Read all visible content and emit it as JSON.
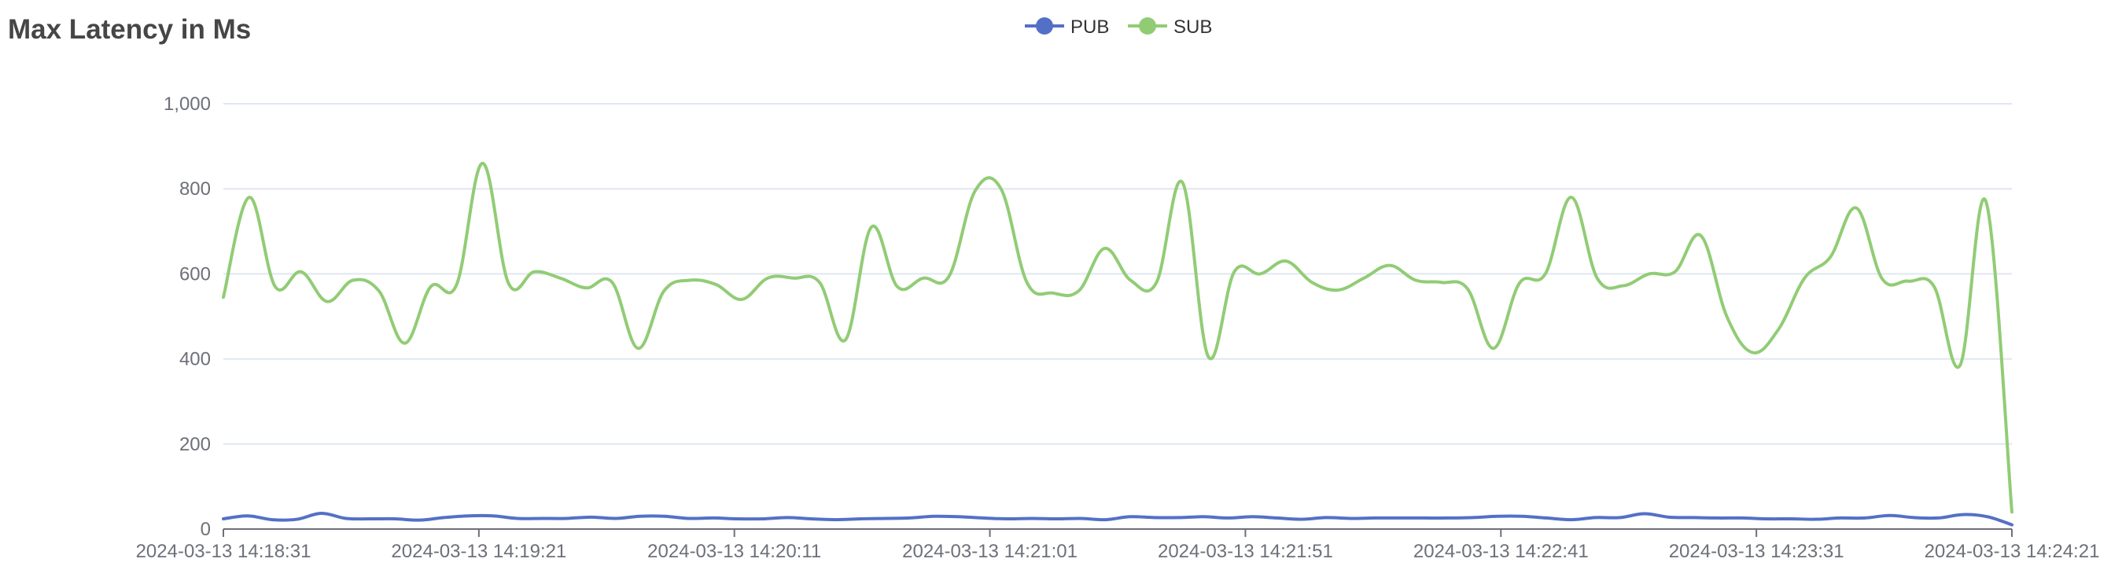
{
  "title": "Max Latency in Ms",
  "chart_data": {
    "type": "line",
    "title": "Max Latency in Ms",
    "xlabel": "",
    "ylabel": "",
    "ylim": [
      0,
      1000
    ],
    "y_ticks": [
      0,
      200,
      400,
      600,
      800,
      1000
    ],
    "y_tick_labels": [
      "0",
      "200",
      "400",
      "600",
      "800",
      "1,000"
    ],
    "x_start": "2024-03-13 14:18:31",
    "x_end": "2024-03-13 14:24:21",
    "x_tick_labels": [
      "2024-03-13 14:18:31",
      "2024-03-13 14:19:21",
      "2024-03-13 14:20:11",
      "2024-03-13 14:21:01",
      "2024-03-13 14:21:51",
      "2024-03-13 14:22:41",
      "2024-03-13 14:23:31",
      "2024-03-13 14:24:21"
    ],
    "grid": true,
    "smooth": true,
    "legend_position": "top-center",
    "series": [
      {
        "name": "PUB",
        "color": "#5470c6",
        "values": [
          24,
          31,
          22,
          23,
          37,
          25,
          24,
          24,
          21,
          27,
          31,
          31,
          25,
          25,
          25,
          28,
          25,
          30,
          30,
          25,
          26,
          24,
          24,
          27,
          24,
          22,
          24,
          25,
          26,
          30,
          29,
          26,
          24,
          25,
          24,
          25,
          22,
          29,
          27,
          27,
          29,
          26,
          29,
          26,
          23,
          27,
          25,
          26,
          26,
          26,
          26,
          27,
          30,
          30,
          26,
          22,
          27,
          27,
          36,
          28,
          27,
          26,
          26,
          24,
          24,
          23,
          26,
          26,
          32,
          27,
          26,
          34,
          29,
          10
        ]
      },
      {
        "name": "SUB",
        "color": "#91cc75",
        "values": [
          545,
          780,
          570,
          605,
          535,
          585,
          560,
          437,
          570,
          575,
          860,
          578,
          605,
          590,
          567,
          580,
          425,
          560,
          585,
          575,
          540,
          590,
          590,
          580,
          445,
          710,
          570,
          590,
          595,
          795,
          800,
          580,
          555,
          560,
          660,
          585,
          580,
          815,
          405,
          605,
          600,
          630,
          580,
          562,
          590,
          620,
          585,
          580,
          565,
          425,
          578,
          600,
          780,
          590,
          572,
          600,
          605,
          690,
          500,
          415,
          470,
          590,
          640,
          755,
          588,
          583,
          570,
          385,
          770,
          40
        ]
      }
    ]
  }
}
